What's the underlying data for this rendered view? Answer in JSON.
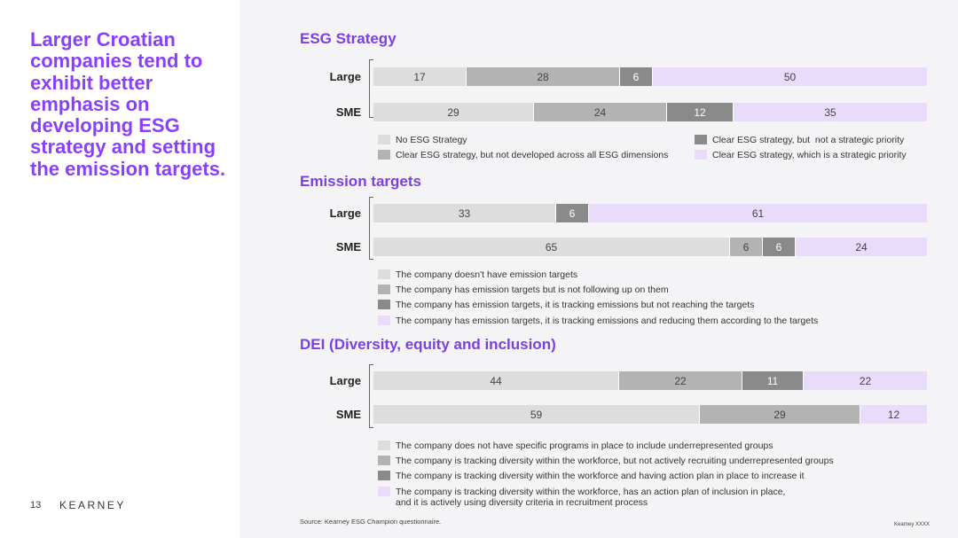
{
  "slide": {
    "headline": "Larger Croatian companies tend to exhibit better emphasis on developing ESG strategy and setting the emission targets.",
    "page_number": "13",
    "brand": "KEARNEY",
    "source": "Source: Kearney ESG Champion questionnaire.",
    "copyright": "Kearney XXXX"
  },
  "colors": {
    "c1": "#dddddd",
    "c2": "#b3b3b3",
    "c3": "#8a8a8a",
    "c4": "#e9dcfa",
    "accent": "#7b3fe4"
  },
  "chart_data": [
    {
      "type": "bar",
      "orientation": "horizontal-stacked",
      "title": "ESG Strategy",
      "categories": [
        "Large",
        "SME"
      ],
      "series": [
        {
          "name": "No ESG Strategy",
          "values": [
            17,
            29
          ]
        },
        {
          "name": "Clear ESG strategy, but not developed across all ESG dimensions",
          "values": [
            28,
            24
          ]
        },
        {
          "name": "Clear ESG strategy, but  not a strategic priority",
          "values": [
            6,
            12
          ]
        },
        {
          "name": "Clear ESG strategy, which is a strategic priority",
          "values": [
            50,
            35
          ]
        }
      ],
      "legend_placement": "bottom-two-columns"
    },
    {
      "type": "bar",
      "orientation": "horizontal-stacked",
      "title": "Emission targets",
      "categories": [
        "Large",
        "SME"
      ],
      "series": [
        {
          "name": "The company doesn't have emission targets",
          "values": [
            33,
            65
          ]
        },
        {
          "name": "The company has emission targets but is not following up on them",
          "values": [
            0,
            6
          ]
        },
        {
          "name": "The company has emission targets, it is tracking emissions but not reaching the targets",
          "values": [
            6,
            6
          ]
        },
        {
          "name": "The company has emission targets, it is tracking emissions and reducing them according to the targets",
          "values": [
            61,
            24
          ]
        }
      ],
      "legend_placement": "bottom"
    },
    {
      "type": "bar",
      "orientation": "horizontal-stacked",
      "title": "DEI (Diversity, equity and inclusion)",
      "categories": [
        "Large",
        "SME"
      ],
      "series": [
        {
          "name": "The company does not have specific programs in place to include underrepresented groups",
          "values": [
            44,
            59
          ]
        },
        {
          "name": "The company is tracking diversity within the workforce, but not actively recruiting underrepresented groups",
          "values": [
            22,
            29
          ]
        },
        {
          "name": "The company is tracking diversity within the workforce and having action plan in place to increase it",
          "values": [
            11,
            0
          ]
        },
        {
          "name": "The company is tracking diversity within the workforce, has an action plan of inclusion in place,\nand it is actively using diversity criteria in recruitment process",
          "values": [
            22,
            12
          ]
        }
      ],
      "legend_placement": "bottom"
    }
  ]
}
